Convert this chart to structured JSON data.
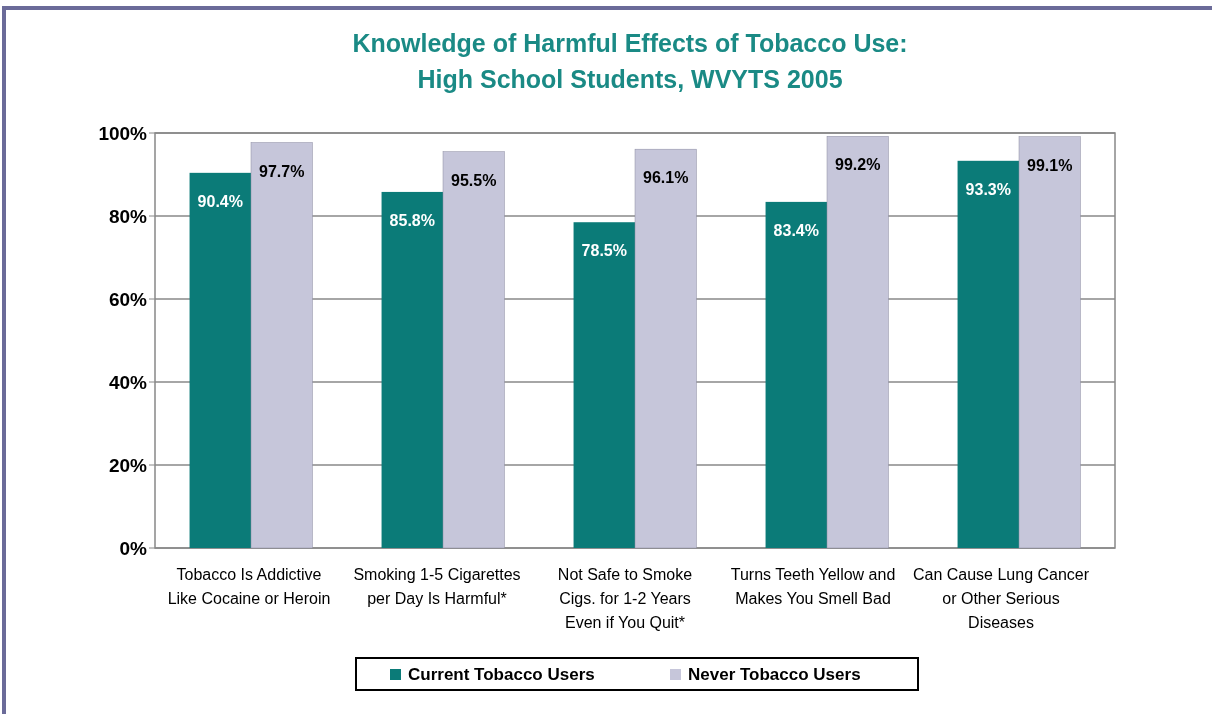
{
  "chart_data": {
    "type": "bar",
    "title": "Knowledge of Harmful Effects of Tobacco Use: High School Students, WVYTS 2005",
    "categories": [
      "Tobacco Is Addictive Like Cocaine or Heroin",
      "Smoking 1-5 Cigarettes per Day Is Harmful*",
      "Not Safe to Smoke Cigs. for 1-2 Years Even if You Quit*",
      "Turns Teeth Yellow and Makes You Smell Bad",
      "Can Cause Lung Cancer or Other Serious Diseases"
    ],
    "series": [
      {
        "name": "Current Tobacco Users",
        "color": "#0b7b78",
        "values": [
          90.4,
          85.8,
          78.5,
          83.4,
          93.3
        ],
        "value_labels": [
          "90.4%",
          "85.8%",
          "78.5%",
          "83.4%",
          "93.3%"
        ]
      },
      {
        "name": "Never Tobacco Users",
        "color": "#c6c6da",
        "values": [
          97.7,
          95.5,
          96.1,
          99.2,
          99.1
        ],
        "value_labels": [
          "97.7%",
          "95.5%",
          "96.1%",
          "99.2%",
          "99.1%"
        ]
      }
    ],
    "ylim": [
      0,
      100
    ],
    "yticks": [
      {
        "value": 0,
        "label": "0%"
      },
      {
        "value": 20,
        "label": "20%"
      },
      {
        "value": 40,
        "label": "40%"
      },
      {
        "value": 60,
        "label": "60%"
      },
      {
        "value": 80,
        "label": "80%"
      },
      {
        "value": 100,
        "label": "100%"
      }
    ],
    "grid": "y",
    "legend": "bottom"
  }
}
